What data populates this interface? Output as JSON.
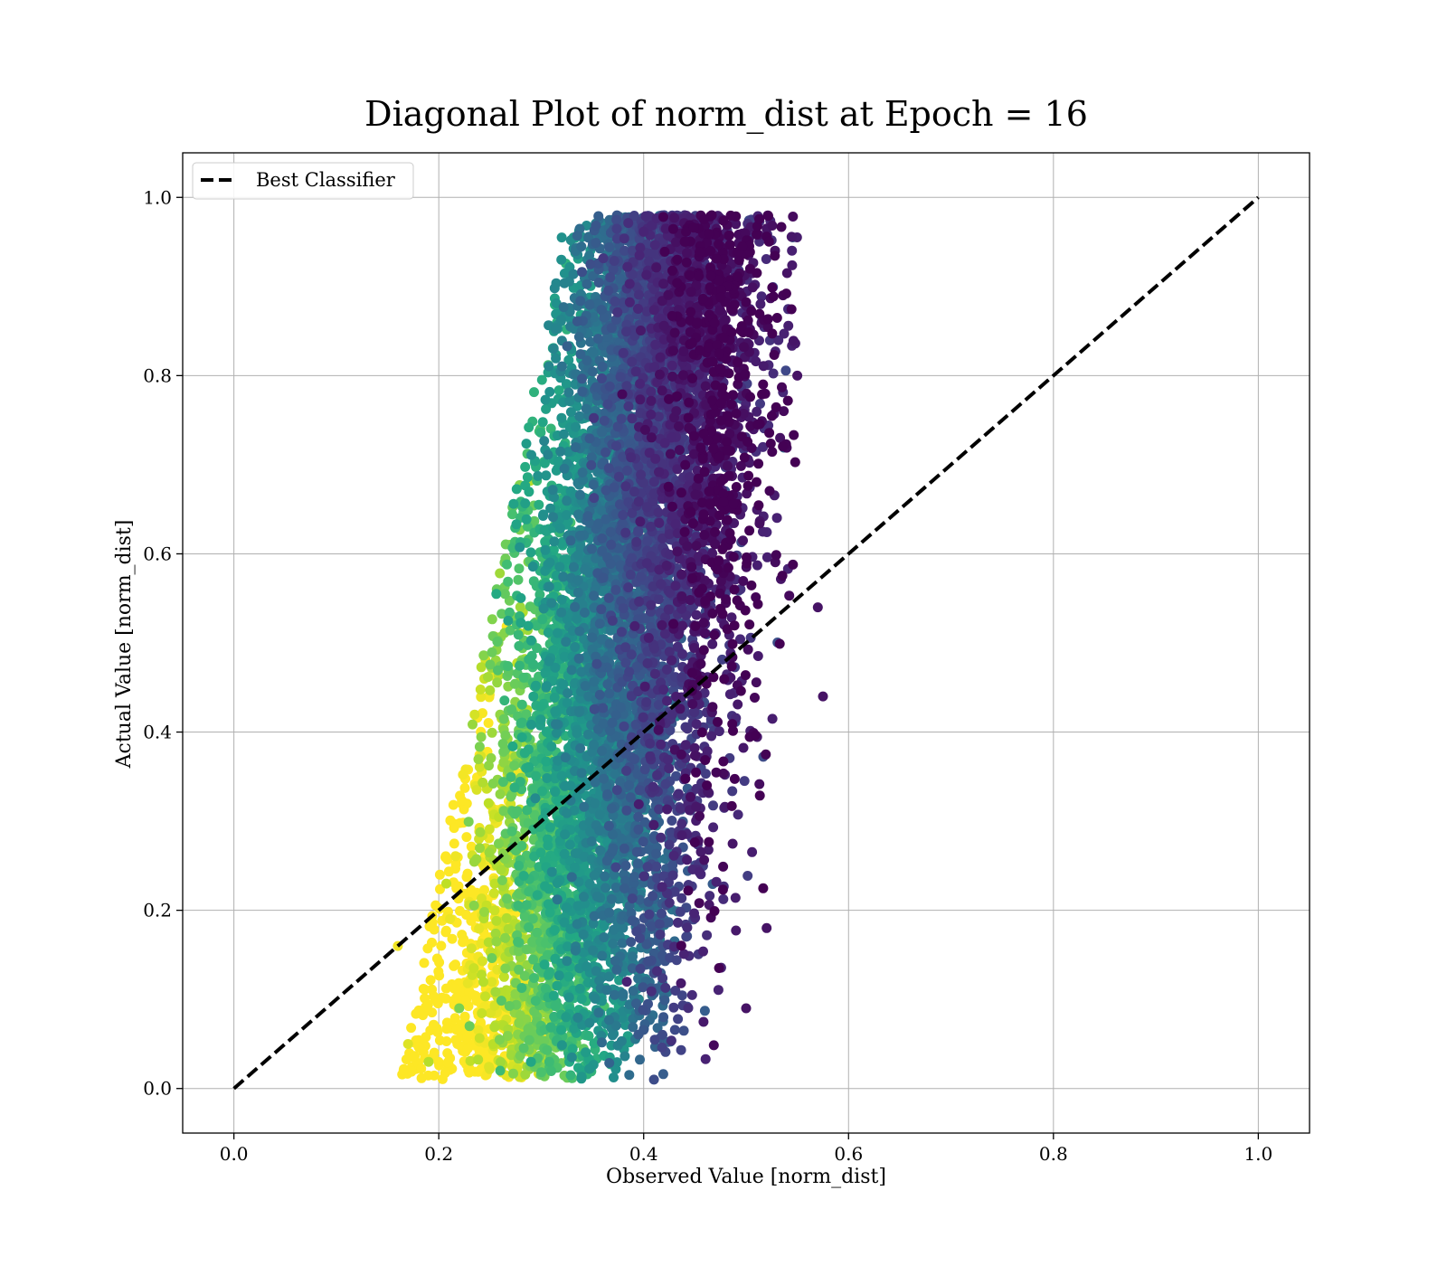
{
  "chart_data": {
    "type": "scatter",
    "title": "Diagonal Plot of norm_dist at Epoch = 16",
    "xlabel": "Observed Value [norm_dist]",
    "ylabel": "Actual Value [norm_dist]",
    "xlim": [
      -0.05,
      1.05
    ],
    "ylim": [
      -0.05,
      1.05
    ],
    "xticks": [
      0.0,
      0.2,
      0.4,
      0.6,
      0.8,
      1.0
    ],
    "yticks": [
      0.0,
      0.2,
      0.4,
      0.6,
      0.8,
      1.0
    ],
    "xtick_labels": [
      "0.0",
      "0.2",
      "0.4",
      "0.6",
      "0.8",
      "1.0"
    ],
    "ytick_labels": [
      "0.0",
      "0.2",
      "0.4",
      "0.6",
      "0.8",
      "1.0"
    ],
    "grid": true,
    "legend_position": "top-left",
    "colormap": "viridis",
    "series": [
      {
        "name": "Best Classifier",
        "kind": "line",
        "style": "dashed",
        "color": "#000000",
        "x": [
          0.0,
          1.0
        ],
        "y": [
          0.0,
          1.0
        ]
      },
      {
        "kind": "scatter",
        "colormap": "viridis",
        "point_count_rendered": 9000,
        "x": [
          0.16,
          0.17,
          0.19,
          0.22,
          0.23,
          0.26,
          0.32,
          0.35,
          0.39,
          0.42,
          0.44,
          0.45,
          0.46,
          0.49,
          0.52,
          0.54,
          0.55,
          0.57,
          0.575,
          0.52,
          0.5,
          0.41,
          0.33,
          0.29
        ],
        "y": [
          0.16,
          0.05,
          0.03,
          0.09,
          0.07,
          0.02,
          0.955,
          0.945,
          0.97,
          0.98,
          0.98,
          0.975,
          0.95,
          0.97,
          0.965,
          0.915,
          0.8,
          0.54,
          0.44,
          0.18,
          0.09,
          0.01,
          0.035,
          0.03
        ]
      }
    ]
  }
}
